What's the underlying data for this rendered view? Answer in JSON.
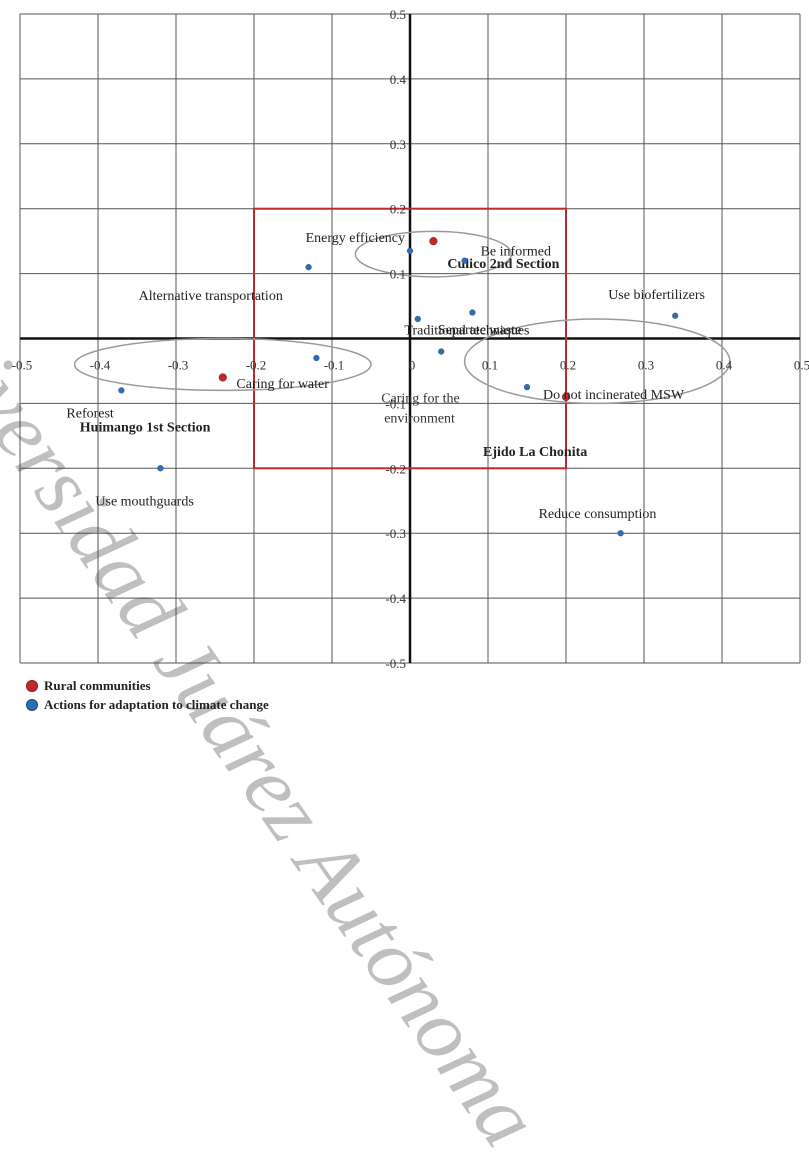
{
  "chart_data": {
    "type": "scatter",
    "title": "",
    "xlabel": "",
    "ylabel": "",
    "xlim": [
      -0.5,
      0.5
    ],
    "ylim": [
      -0.5,
      0.5
    ],
    "grid": true,
    "x_ticks": [
      "-0.5",
      "-0.4",
      "-0.3",
      "-0.2",
      "-0.1",
      "0",
      "0.1",
      "0.2",
      "0.3",
      "0.4",
      "0.5"
    ],
    "y_ticks": [
      "0.5",
      "0.4",
      "0.3",
      "0.2",
      "0.1",
      "0",
      "-0.1",
      "-0.2",
      "-0.3",
      "-0.4",
      "-0.5"
    ],
    "legend_position": "bottom-left",
    "series": [
      {
        "name": "Rural communities",
        "color": "#c0282d",
        "points": [
          {
            "label": "Culico 2nd Section",
            "x": 0.03,
            "y": 0.15
          },
          {
            "label": "Huimango 1st Section",
            "x": -0.24,
            "y": -0.06
          },
          {
            "label": "Ejido La Chonita",
            "x": 0.2,
            "y": -0.09
          }
        ]
      },
      {
        "name": "Actions for adaptation to climate change",
        "color": "#2e6db5",
        "points": [
          {
            "label": "Energy efficiency",
            "x": 0.0,
            "y": 0.135
          },
          {
            "label": "Be informed",
            "x": 0.07,
            "y": 0.12
          },
          {
            "label": "Alternative transportation",
            "x": -0.13,
            "y": 0.11
          },
          {
            "label": "Traditional techniques",
            "x": 0.08,
            "y": 0.04
          },
          {
            "label": "Use biofertilizers",
            "x": 0.34,
            "y": 0.035
          },
          {
            "label": "Separate waste",
            "x": 0.01,
            "y": 0.03
          },
          {
            "label": "Reforest",
            "x": -0.37,
            "y": -0.08
          },
          {
            "label": "Caring for water",
            "x": -0.12,
            "y": -0.03
          },
          {
            "label": "Caring for the environment",
            "x": 0.04,
            "y": -0.02
          },
          {
            "label": "Do not incinerated MSW",
            "x": 0.15,
            "y": -0.075
          },
          {
            "label": "Use mouthguards",
            "x": -0.32,
            "y": -0.2
          },
          {
            "label": "Reduce consumption",
            "x": 0.27,
            "y": -0.3
          }
        ]
      }
    ],
    "highlight_region": {
      "x": [
        -0.2,
        0.2
      ],
      "y": [
        -0.2,
        0.2
      ],
      "color": "#c0282d"
    },
    "groupings": [
      {
        "name": "Culico 2nd Section cluster",
        "center": [
          0.03,
          0.13
        ],
        "radius": [
          0.1,
          0.035
        ]
      },
      {
        "name": "Huimango 1st Section cluster",
        "center": [
          -0.24,
          -0.04
        ],
        "radius": [
          0.19,
          0.04
        ]
      },
      {
        "name": "Ejido La Chonita cluster",
        "center": [
          0.24,
          -0.035
        ],
        "radius": [
          0.17,
          0.065
        ]
      }
    ]
  },
  "watermark": "Universidad Juárez Autónoma"
}
